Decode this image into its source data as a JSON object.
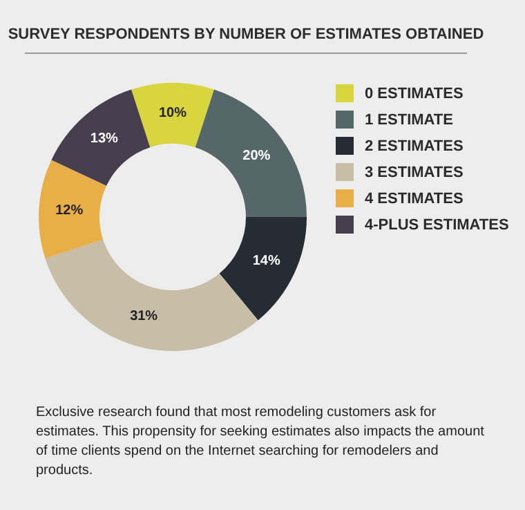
{
  "chart_data": {
    "type": "donut",
    "title": "SURVEY RESPONDENTS BY NUMBER OF ESTIMATES OBTAINED",
    "categories": [
      "0 ESTIMATES",
      "1 ESTIMATE",
      "2 ESTIMATES",
      "3 ESTIMATES",
      "4 ESTIMATES",
      "4-PLUS ESTIMATES"
    ],
    "values": [
      10,
      20,
      14,
      31,
      12,
      13
    ],
    "value_labels": [
      "10%",
      "20%",
      "14%",
      "31%",
      "12%",
      "13%"
    ],
    "colors": [
      "#d9d53f",
      "#56676a",
      "#262c33",
      "#c8bea8",
      "#e8ae48",
      "#463e4c"
    ],
    "legend": "right",
    "annotations": [
      "Exclusive research found that most remodeling customers ask for estimates. This propensity for seeking estimates also impacts the amount of time clients spend on the Internet searching for remodelers and products."
    ]
  }
}
